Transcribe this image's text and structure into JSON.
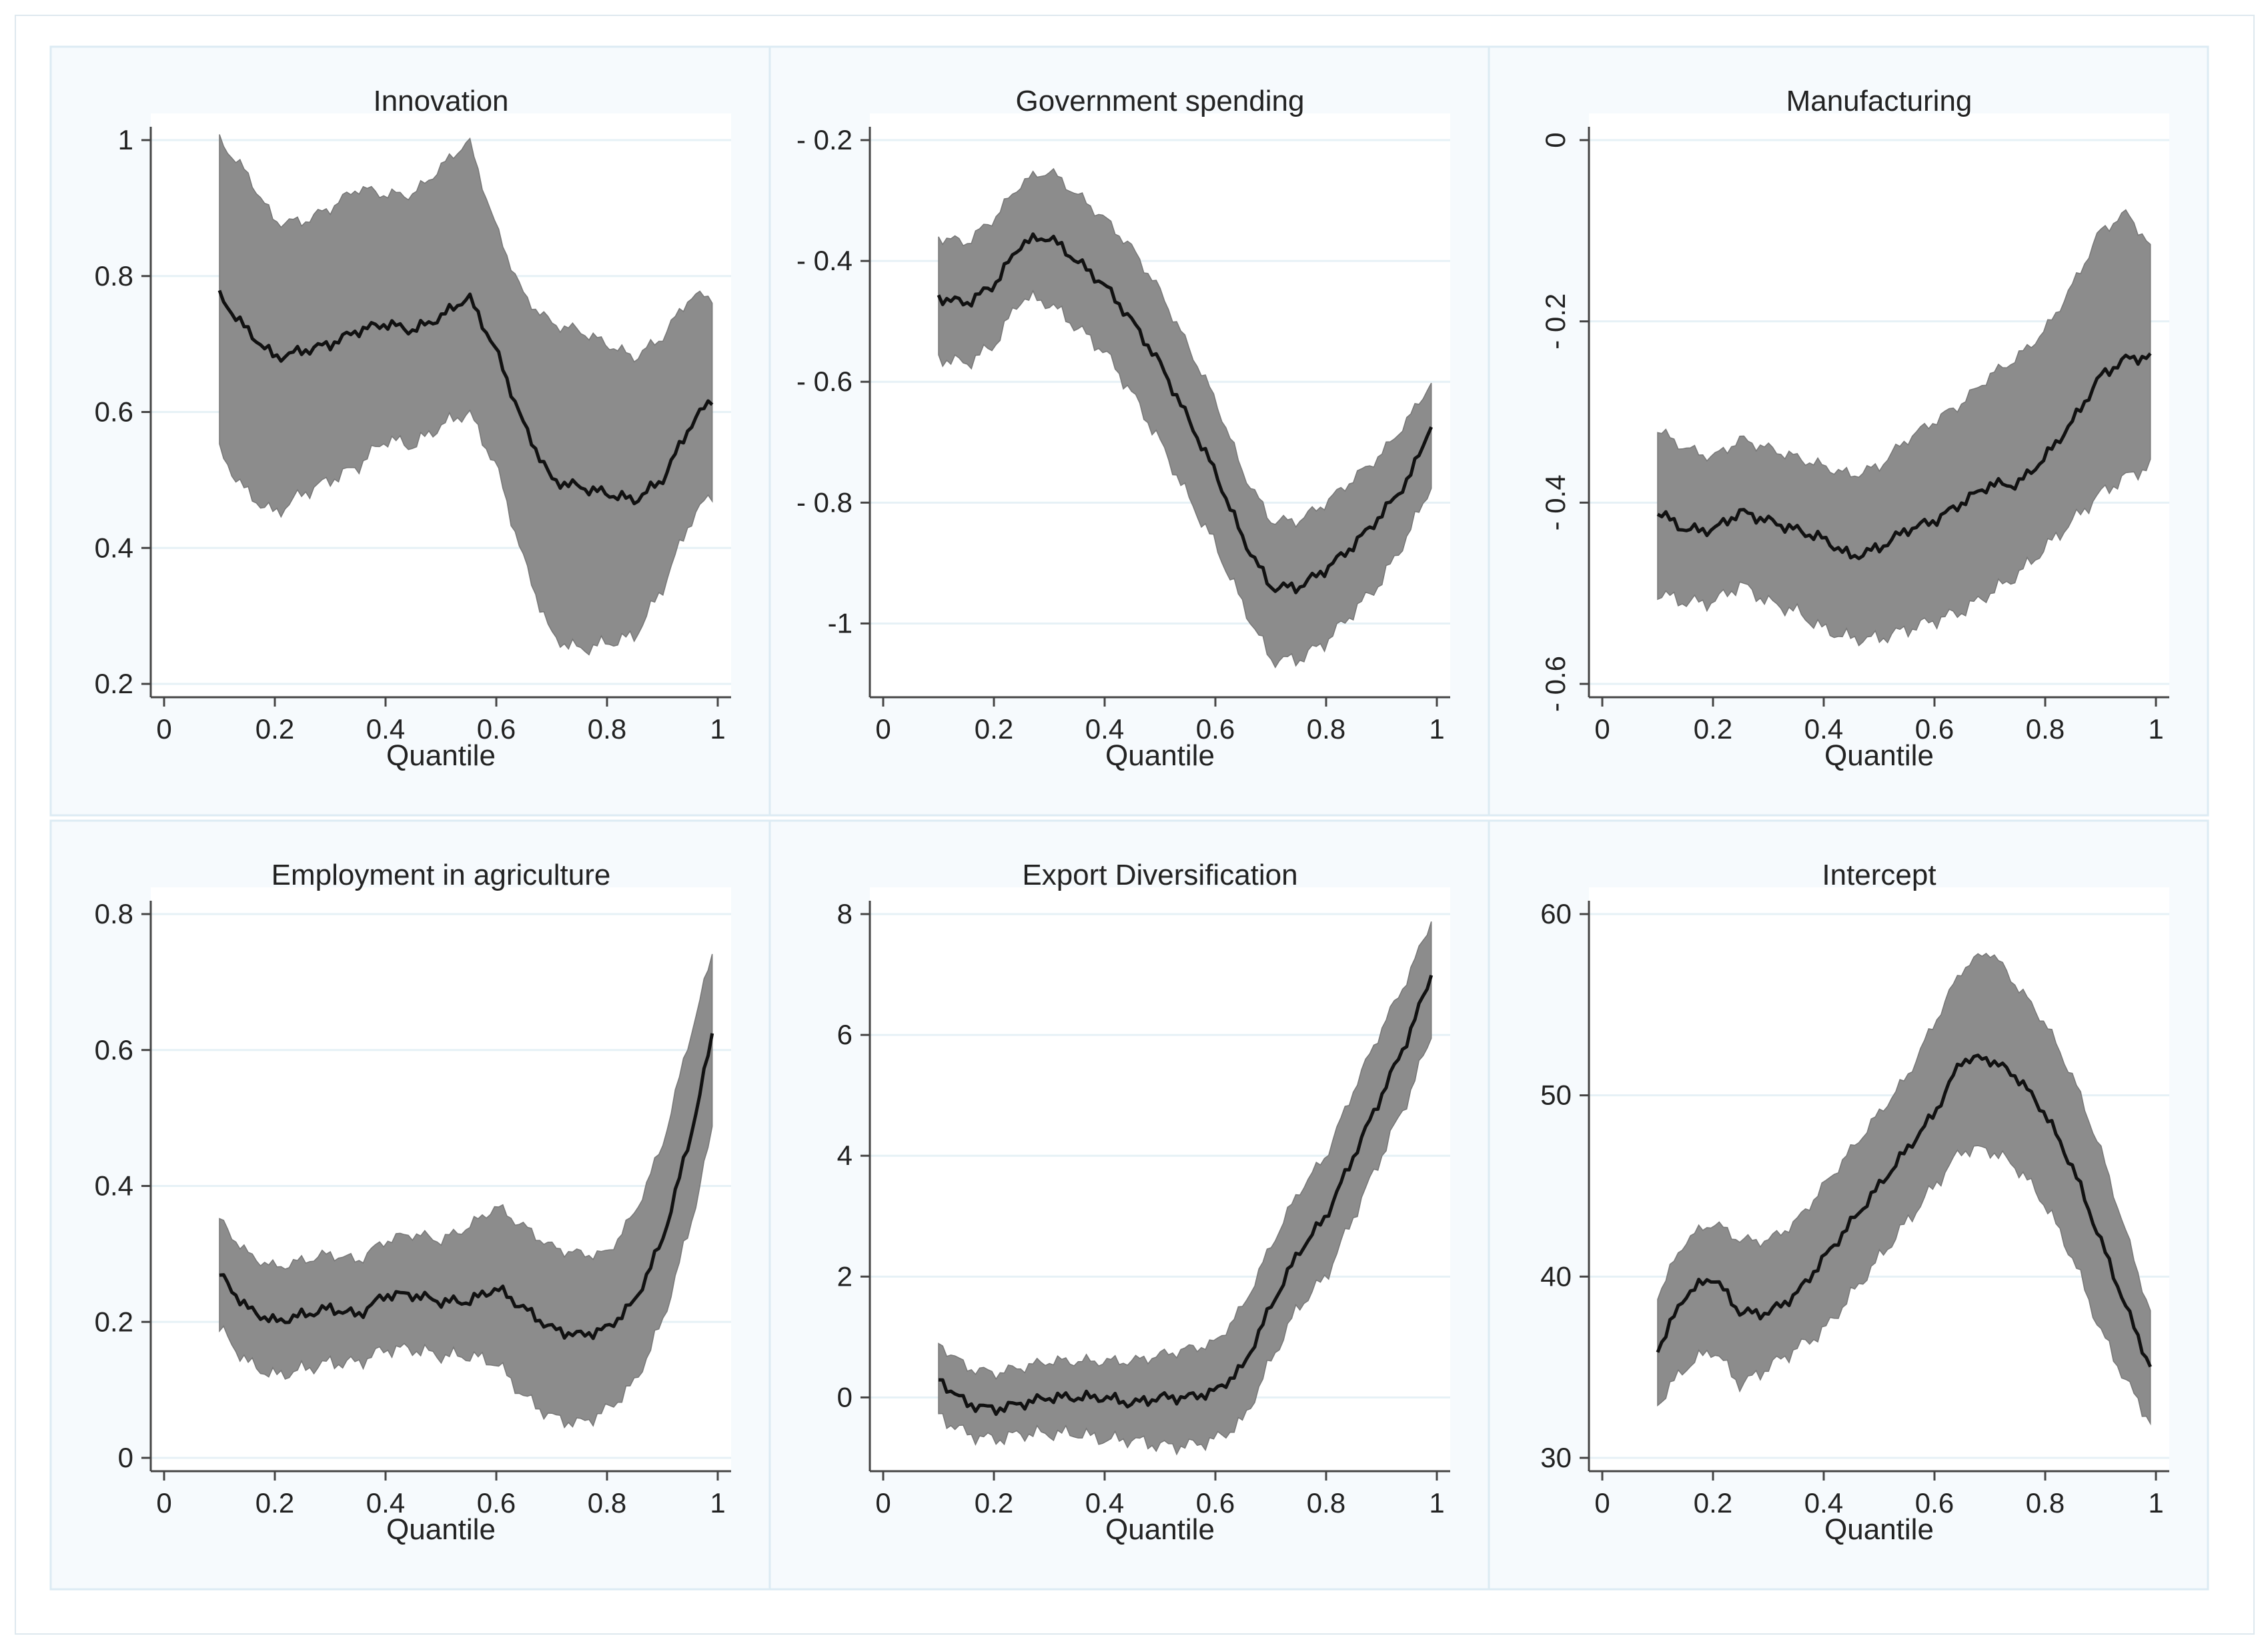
{
  "colors": {
    "band": "#8c8c8c",
    "line": "#111111",
    "panel_background": "#f6fafd",
    "grid": "#e6f1f6"
  },
  "chart_data": [
    {
      "type": "line",
      "title": "Innovation",
      "xlabel": "Quantile",
      "ylabel": "",
      "xlim": [
        0,
        1
      ],
      "ylim": [
        0.2,
        1.0
      ],
      "xticks": [
        "0",
        "0.2",
        "0.4",
        "0.6",
        "0.8",
        "1"
      ],
      "yticks": [
        "0.2",
        "0.4",
        "0.6",
        "0.8",
        "1"
      ],
      "ytick_values": [
        0.2,
        0.4,
        0.6,
        0.8,
        1.0
      ],
      "series": [
        {
          "name": "coefficient",
          "x": [
            0.1,
            0.15,
            0.2,
            0.25,
            0.3,
            0.35,
            0.4,
            0.45,
            0.5,
            0.55,
            0.6,
            0.65,
            0.7,
            0.75,
            0.8,
            0.85,
            0.9,
            0.95,
            0.99
          ],
          "values": [
            0.77,
            0.72,
            0.68,
            0.69,
            0.7,
            0.72,
            0.73,
            0.72,
            0.74,
            0.77,
            0.69,
            0.58,
            0.5,
            0.49,
            0.48,
            0.47,
            0.5,
            0.58,
            0.62
          ]
        },
        {
          "name": "lower bound",
          "values": [
            0.54,
            0.48,
            0.45,
            0.48,
            0.5,
            0.52,
            0.56,
            0.55,
            0.58,
            0.6,
            0.52,
            0.38,
            0.27,
            0.25,
            0.26,
            0.27,
            0.34,
            0.44,
            0.48
          ]
        },
        {
          "name": "upper bound",
          "values": [
            1.0,
            0.95,
            0.88,
            0.88,
            0.9,
            0.93,
            0.92,
            0.92,
            0.96,
            1.0,
            0.87,
            0.77,
            0.73,
            0.72,
            0.7,
            0.68,
            0.71,
            0.77,
            0.77
          ]
        }
      ]
    },
    {
      "type": "line",
      "title": "Government spending",
      "xlabel": "Quantile",
      "ylabel": "",
      "xlim": [
        0,
        1
      ],
      "ylim": [
        -1.1,
        -0.2
      ],
      "xticks": [
        "0",
        "0.2",
        "0.4",
        "0.6",
        "0.8",
        "1"
      ],
      "yticks": [
        "-1",
        "- 0.8",
        "- 0.6",
        "- 0.4",
        "- 0.2"
      ],
      "ytick_values": [
        -1.0,
        -0.8,
        -0.6,
        -0.4,
        -0.2
      ],
      "series": [
        {
          "name": "coefficient",
          "x": [
            0.1,
            0.15,
            0.2,
            0.25,
            0.3,
            0.35,
            0.4,
            0.45,
            0.5,
            0.55,
            0.6,
            0.65,
            0.7,
            0.75,
            0.8,
            0.85,
            0.9,
            0.95,
            0.99
          ],
          "values": [
            -0.46,
            -0.47,
            -0.44,
            -0.37,
            -0.36,
            -0.4,
            -0.44,
            -0.5,
            -0.57,
            -0.66,
            -0.75,
            -0.86,
            -0.94,
            -0.94,
            -0.91,
            -0.87,
            -0.82,
            -0.76,
            -0.67
          ]
        },
        {
          "name": "lower bound",
          "values": [
            -0.56,
            -0.57,
            -0.54,
            -0.46,
            -0.47,
            -0.51,
            -0.55,
            -0.62,
            -0.7,
            -0.79,
            -0.87,
            -0.97,
            -1.06,
            -1.06,
            -1.03,
            -0.98,
            -0.93,
            -0.85,
            -0.77
          ]
        },
        {
          "name": "upper bound",
          "values": [
            -0.36,
            -0.37,
            -0.33,
            -0.27,
            -0.25,
            -0.29,
            -0.33,
            -0.38,
            -0.45,
            -0.54,
            -0.63,
            -0.75,
            -0.83,
            -0.83,
            -0.8,
            -0.76,
            -0.72,
            -0.66,
            -0.6
          ]
        }
      ]
    },
    {
      "type": "line",
      "title": "Manufacturing",
      "xlabel": "Quantile",
      "ylabel": "",
      "xlim": [
        0,
        1
      ],
      "ylim": [
        -0.6,
        0.0
      ],
      "xticks": [
        "0",
        "0.2",
        "0.4",
        "0.6",
        "0.8",
        "1"
      ],
      "yticks": [
        "- 0.6",
        "- 0.4",
        "- 0.2",
        "0"
      ],
      "ytick_values": [
        -0.6,
        -0.4,
        -0.2,
        0.0
      ],
      "series": [
        {
          "name": "coefficient",
          "x": [
            0.1,
            0.15,
            0.2,
            0.25,
            0.3,
            0.35,
            0.4,
            0.45,
            0.5,
            0.55,
            0.6,
            0.65,
            0.7,
            0.75,
            0.8,
            0.85,
            0.9,
            0.95,
            0.99
          ],
          "values": [
            -0.41,
            -0.43,
            -0.43,
            -0.41,
            -0.42,
            -0.43,
            -0.44,
            -0.46,
            -0.45,
            -0.43,
            -0.42,
            -0.4,
            -0.38,
            -0.38,
            -0.35,
            -0.31,
            -0.26,
            -0.24,
            -0.24
          ]
        },
        {
          "name": "lower bound",
          "values": [
            -0.5,
            -0.51,
            -0.51,
            -0.49,
            -0.51,
            -0.52,
            -0.54,
            -0.55,
            -0.55,
            -0.54,
            -0.53,
            -0.52,
            -0.5,
            -0.48,
            -0.45,
            -0.42,
            -0.39,
            -0.37,
            -0.36
          ]
        },
        {
          "name": "upper bound",
          "values": [
            -0.32,
            -0.34,
            -0.35,
            -0.33,
            -0.34,
            -0.35,
            -0.36,
            -0.37,
            -0.36,
            -0.33,
            -0.31,
            -0.29,
            -0.26,
            -0.24,
            -0.21,
            -0.16,
            -0.1,
            -0.08,
            -0.12
          ]
        }
      ]
    },
    {
      "type": "line",
      "title": "Employment in agriculture",
      "xlabel": "Quantile",
      "ylabel": "",
      "xlim": [
        0,
        1
      ],
      "ylim": [
        0.0,
        0.8
      ],
      "xticks": [
        "0",
        "0.2",
        "0.4",
        "0.6",
        "0.8",
        "1"
      ],
      "yticks": [
        "0",
        "0.2",
        "0.4",
        "0.6",
        "0.8"
      ],
      "ytick_values": [
        0.0,
        0.2,
        0.4,
        0.6,
        0.8
      ],
      "series": [
        {
          "name": "coefficient",
          "x": [
            0.1,
            0.15,
            0.2,
            0.25,
            0.3,
            0.35,
            0.4,
            0.45,
            0.5,
            0.55,
            0.6,
            0.65,
            0.7,
            0.75,
            0.8,
            0.85,
            0.9,
            0.95,
            0.99
          ],
          "values": [
            0.27,
            0.22,
            0.2,
            0.21,
            0.22,
            0.21,
            0.24,
            0.24,
            0.23,
            0.23,
            0.25,
            0.22,
            0.19,
            0.18,
            0.19,
            0.23,
            0.32,
            0.47,
            0.62
          ]
        },
        {
          "name": "lower bound",
          "values": [
            0.19,
            0.14,
            0.12,
            0.13,
            0.14,
            0.14,
            0.16,
            0.16,
            0.15,
            0.15,
            0.14,
            0.09,
            0.06,
            0.05,
            0.07,
            0.11,
            0.2,
            0.34,
            0.48
          ]
        },
        {
          "name": "upper bound",
          "values": [
            0.35,
            0.3,
            0.28,
            0.29,
            0.3,
            0.29,
            0.32,
            0.33,
            0.32,
            0.34,
            0.37,
            0.34,
            0.31,
            0.3,
            0.3,
            0.36,
            0.46,
            0.62,
            0.74
          ]
        }
      ]
    },
    {
      "type": "line",
      "title": "Export Diversification",
      "xlabel": "Quantile",
      "ylabel": "",
      "xlim": [
        0,
        1
      ],
      "ylim": [
        -1.0,
        8.0
      ],
      "xticks": [
        "0",
        "0.2",
        "0.4",
        "0.6",
        "0.8",
        "1"
      ],
      "yticks": [
        "0",
        "2",
        "4",
        "6",
        "8"
      ],
      "ytick_values": [
        0,
        2,
        4,
        6,
        8
      ],
      "series": [
        {
          "name": "coefficient",
          "x": [
            0.1,
            0.15,
            0.2,
            0.25,
            0.3,
            0.35,
            0.4,
            0.45,
            0.5,
            0.55,
            0.6,
            0.65,
            0.7,
            0.75,
            0.8,
            0.85,
            0.9,
            0.95,
            0.99
          ],
          "values": [
            0.3,
            -0.1,
            -0.2,
            -0.1,
            0.0,
            0.0,
            0.0,
            -0.1,
            0.0,
            0.0,
            0.1,
            0.5,
            1.5,
            2.4,
            3.0,
            4.0,
            5.0,
            6.0,
            7.0
          ]
        },
        {
          "name": "lower bound",
          "values": [
            -0.3,
            -0.6,
            -0.7,
            -0.6,
            -0.6,
            -0.6,
            -0.7,
            -0.7,
            -0.8,
            -0.8,
            -0.7,
            -0.4,
            0.6,
            1.5,
            2.0,
            3.0,
            4.0,
            5.0,
            6.0
          ]
        },
        {
          "name": "upper bound",
          "values": [
            0.9,
            0.5,
            0.4,
            0.5,
            0.6,
            0.6,
            0.6,
            0.6,
            0.7,
            0.8,
            0.9,
            1.5,
            2.5,
            3.4,
            4.0,
            5.1,
            6.1,
            7.0,
            7.9
          ]
        }
      ]
    },
    {
      "type": "line",
      "title": "Intercept",
      "xlabel": "Quantile",
      "ylabel": "",
      "xlim": [
        0,
        1
      ],
      "ylim": [
        30,
        60
      ],
      "xticks": [
        "0",
        "0.2",
        "0.4",
        "0.6",
        "0.8",
        "1"
      ],
      "yticks": [
        "30",
        "40",
        "50",
        "60"
      ],
      "ytick_values": [
        30,
        40,
        50,
        60
      ],
      "series": [
        {
          "name": "coefficient",
          "x": [
            0.1,
            0.15,
            0.2,
            0.25,
            0.3,
            0.35,
            0.4,
            0.45,
            0.5,
            0.55,
            0.6,
            0.65,
            0.7,
            0.75,
            0.8,
            0.85,
            0.9,
            0.95,
            0.99
          ],
          "values": [
            36,
            39,
            40,
            38,
            38,
            39,
            41,
            43,
            45,
            47,
            49,
            52,
            52,
            51,
            49,
            46,
            42,
            38,
            35
          ]
        },
        {
          "name": "lower bound",
          "values": [
            33,
            35,
            36,
            34,
            35,
            36,
            37,
            39,
            41,
            43,
            45,
            47,
            47,
            46,
            44,
            41,
            37,
            34,
            32
          ]
        },
        {
          "name": "upper bound",
          "values": [
            39,
            42,
            43,
            42,
            42,
            43,
            45,
            47,
            49,
            51,
            54,
            57,
            58,
            56,
            54,
            51,
            47,
            42,
            38
          ]
        }
      ]
    }
  ]
}
